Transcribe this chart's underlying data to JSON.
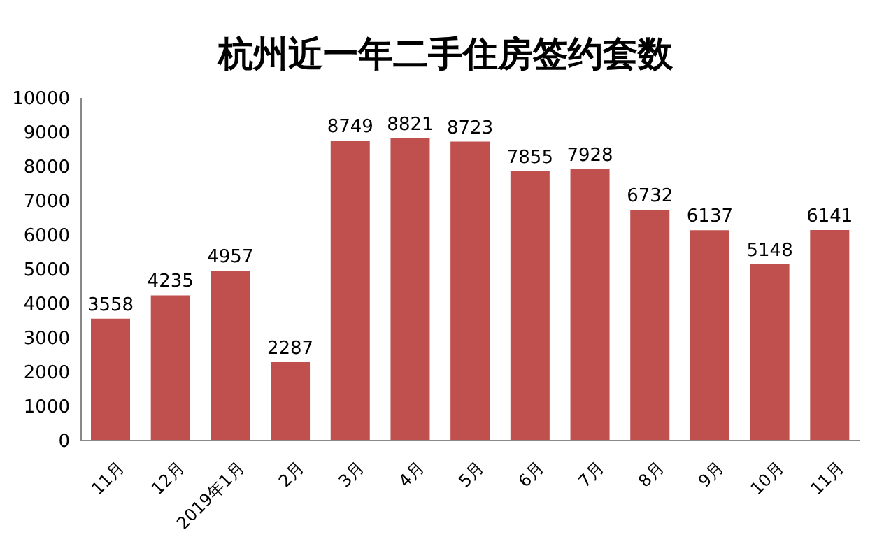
{
  "chart_data": {
    "type": "bar",
    "title": "杭州近一年二手住房签约套数",
    "categories": [
      "11月",
      "12月",
      "2019年1月",
      "2月",
      "3月",
      "4月",
      "5月",
      "6月",
      "7月",
      "8月",
      "9月",
      "10月",
      "11月"
    ],
    "values": [
      3558,
      4235,
      4957,
      2287,
      8749,
      8821,
      8723,
      7855,
      7928,
      6732,
      6137,
      5148,
      6141
    ],
    "color": "#c0504d",
    "ylim": [
      0,
      10000
    ],
    "yticks": [
      0,
      1000,
      2000,
      3000,
      4000,
      5000,
      6000,
      7000,
      8000,
      9000,
      10000
    ],
    "grid": false,
    "legend": false,
    "data_labels": true
  }
}
